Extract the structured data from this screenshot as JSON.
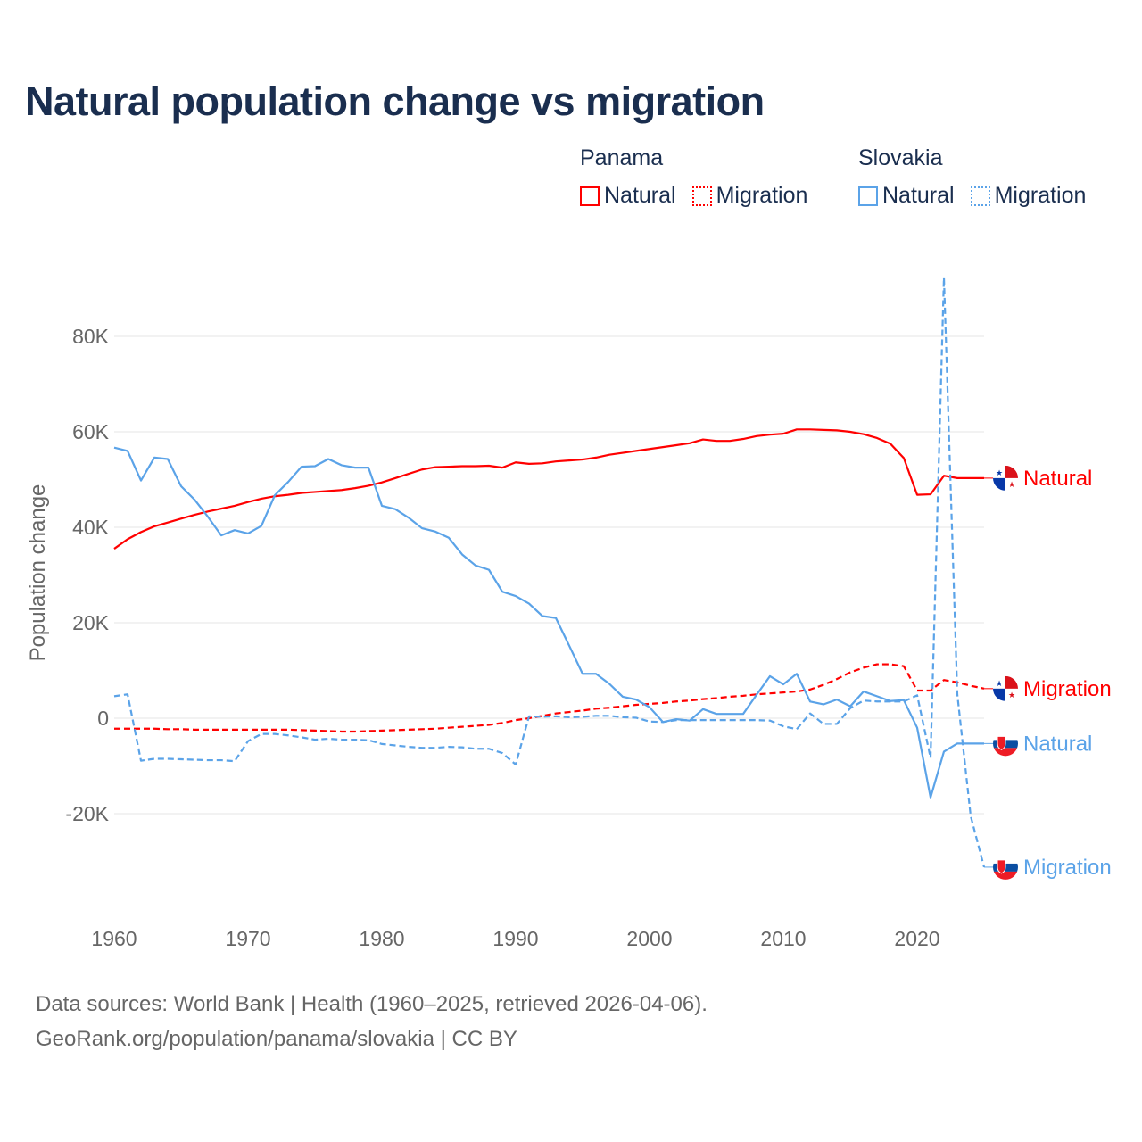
{
  "title": "Natural population change vs migration",
  "legend": {
    "groups": [
      {
        "country": "Panama",
        "items": [
          {
            "label": "Natural",
            "style": "solid"
          },
          {
            "label": "Migration",
            "style": "dotted"
          }
        ],
        "color": "#ff0000"
      },
      {
        "country": "Slovakia",
        "items": [
          {
            "label": "Natural",
            "style": "solid"
          },
          {
            "label": "Migration",
            "style": "dotted"
          }
        ],
        "color": "#5ba3e8"
      }
    ]
  },
  "footer": {
    "line1": "Data sources: World Bank | Health (1960–2025, retrieved 2026-04-06).",
    "line2": "GeoRank.org/population/panama/slovakia | CC BY"
  },
  "chart_data": {
    "type": "line",
    "title": "Natural population change vs migration",
    "xlabel": "",
    "ylabel": "Population change",
    "xlim": [
      1960,
      2025
    ],
    "ylim": [
      -35000,
      95000
    ],
    "x_ticks": [
      1960,
      1970,
      1980,
      1990,
      2000,
      2010,
      2020
    ],
    "y_ticks": [
      {
        "v": -20000,
        "label": "-20K"
      },
      {
        "v": 0,
        "label": "0"
      },
      {
        "v": 20000,
        "label": "20K"
      },
      {
        "v": 40000,
        "label": "40K"
      },
      {
        "v": 60000,
        "label": "60K"
      },
      {
        "v": 80000,
        "label": "80K"
      }
    ],
    "grid": true,
    "series": [
      {
        "name": "Panama Natural",
        "end_label": "Natural",
        "flag": "panama",
        "color": "#ff0000",
        "dash": false,
        "start": 1960,
        "values": [
          35.5,
          37.5,
          39,
          40.2,
          41,
          41.8,
          42.6,
          43.3,
          43.9,
          44.5,
          45.3,
          46,
          46.5,
          46.8,
          47.2,
          47.4,
          47.6,
          47.8,
          48.2,
          48.7,
          49.4,
          50.3,
          51.2,
          52.1,
          52.6,
          52.7,
          52.8,
          52.8,
          52.9,
          52.5,
          53.6,
          53.3,
          53.4,
          53.8,
          54,
          54.2,
          54.6,
          55.2,
          55.6,
          56,
          56.4,
          56.8,
          57.2,
          57.6,
          58.4,
          58.1,
          58.1,
          58.5,
          59.1,
          59.4,
          59.6,
          60.5,
          60.5,
          60.4,
          60.3,
          60,
          59.5,
          58.7,
          57.5,
          54.5,
          46.8,
          46.9,
          50.8,
          50.3
        ]
      },
      {
        "name": "Panama Migration",
        "end_label": "Migration",
        "flag": "panama",
        "color": "#ff0000",
        "dash": true,
        "start": 1960,
        "values": [
          -2.2,
          -2.2,
          -2.2,
          -2.2,
          -2.3,
          -2.3,
          -2.4,
          -2.4,
          -2.4,
          -2.4,
          -2.4,
          -2.4,
          -2.4,
          -2.4,
          -2.5,
          -2.6,
          -2.7,
          -2.8,
          -2.8,
          -2.7,
          -2.6,
          -2.5,
          -2.4,
          -2.3,
          -2.2,
          -2,
          -1.8,
          -1.6,
          -1.4,
          -1,
          -0.4,
          0,
          0.5,
          1,
          1.3,
          1.6,
          2,
          2.2,
          2.5,
          2.8,
          3,
          3.2,
          3.5,
          3.7,
          4,
          4.2,
          4.5,
          4.7,
          5,
          5.2,
          5.4,
          5.6,
          6,
          7,
          8.2,
          9.6,
          10.6,
          11.3,
          11.3,
          10.9,
          5.8,
          5.8,
          8,
          7.5,
          6.8,
          6.2
        ]
      },
      {
        "name": "Slovakia Natural",
        "end_label": "Natural",
        "flag": "slovakia",
        "color": "#5ba3e8",
        "dash": false,
        "start": 1960,
        "values": [
          56.7,
          56,
          49.8,
          54.6,
          54.3,
          48.6,
          45.8,
          42.2,
          38.3,
          39.4,
          38.7,
          40.3,
          46.7,
          49.5,
          52.7,
          52.8,
          54.3,
          53,
          52.5,
          52.5,
          44.5,
          43.8,
          42,
          39.8,
          39.1,
          37.8,
          34.3,
          32,
          31.1,
          26.5,
          25.6,
          24,
          21.4,
          21,
          15.2,
          9.3,
          9.3,
          7.2,
          4.5,
          3.9,
          2.3,
          -0.8,
          -0.2,
          -0.5,
          1.9,
          0.9,
          0.9,
          0.9,
          4.9,
          8.8,
          7.1,
          9.3,
          3.5,
          2.9,
          3.9,
          2.5,
          5.6,
          4.6,
          3.6,
          3.8,
          -2,
          -16.6,
          -7,
          -5.3
        ]
      },
      {
        "name": "Slovakia Migration",
        "end_label": "Migration",
        "flag": "slovakia",
        "color": "#5ba3e8",
        "dash": true,
        "start": 1960,
        "values": [
          4.6,
          5,
          -8.9,
          -8.5,
          -8.5,
          -8.6,
          -8.7,
          -8.8,
          -8.8,
          -9,
          -4.8,
          -3.3,
          -3.3,
          -3.6,
          -4,
          -4.5,
          -4.3,
          -4.5,
          -4.5,
          -4.6,
          -5.4,
          -5.7,
          -6,
          -6.2,
          -6.2,
          -6,
          -6.1,
          -6.4,
          -6.4,
          -7.3,
          -9.7,
          0.4,
          0.3,
          0.4,
          0.2,
          0.3,
          0.5,
          0.5,
          0.2,
          0.1,
          -0.7,
          -0.8,
          -0.4,
          -0.4,
          -0.4,
          -0.4,
          -0.4,
          -0.4,
          -0.4,
          -0.5,
          -1.7,
          -2.3,
          1,
          -1.2,
          -1.2,
          2.1,
          3.7,
          3.5,
          3.5,
          3.5,
          4.8,
          -8.3,
          92.3,
          5,
          -20.5,
          -31.2
        ]
      }
    ],
    "value_unit": "thousands"
  }
}
